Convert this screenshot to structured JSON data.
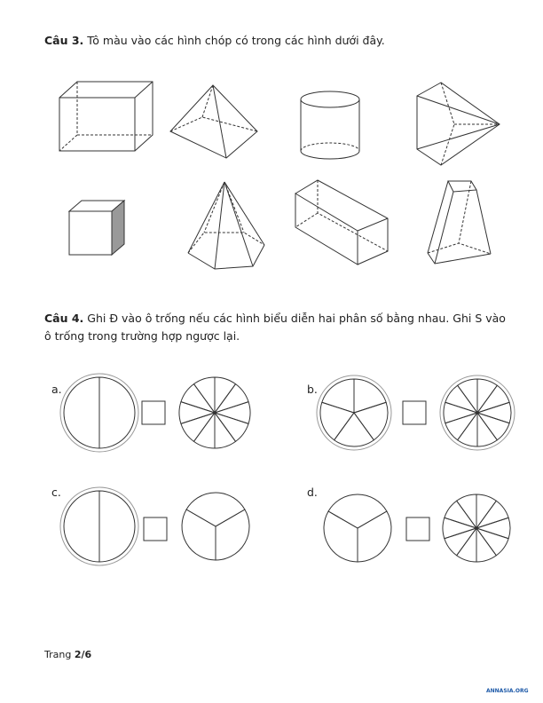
{
  "question3": {
    "label": "Câu 3.",
    "text": "Tô màu vào các hình chóp có trong các hình dưới đây."
  },
  "question4": {
    "label": "Câu 4.",
    "text": "Ghi Đ vào ô trống nếu các hình biểu diễn hai phân số bằng nhau. Ghi S vào ô trống trong trường hợp ngược lại.",
    "items": [
      "a.",
      "b.",
      "c.",
      "d."
    ]
  },
  "footer": {
    "prefix": "Trang",
    "page": "2/6"
  },
  "logo": "ANNASIA.ORG"
}
